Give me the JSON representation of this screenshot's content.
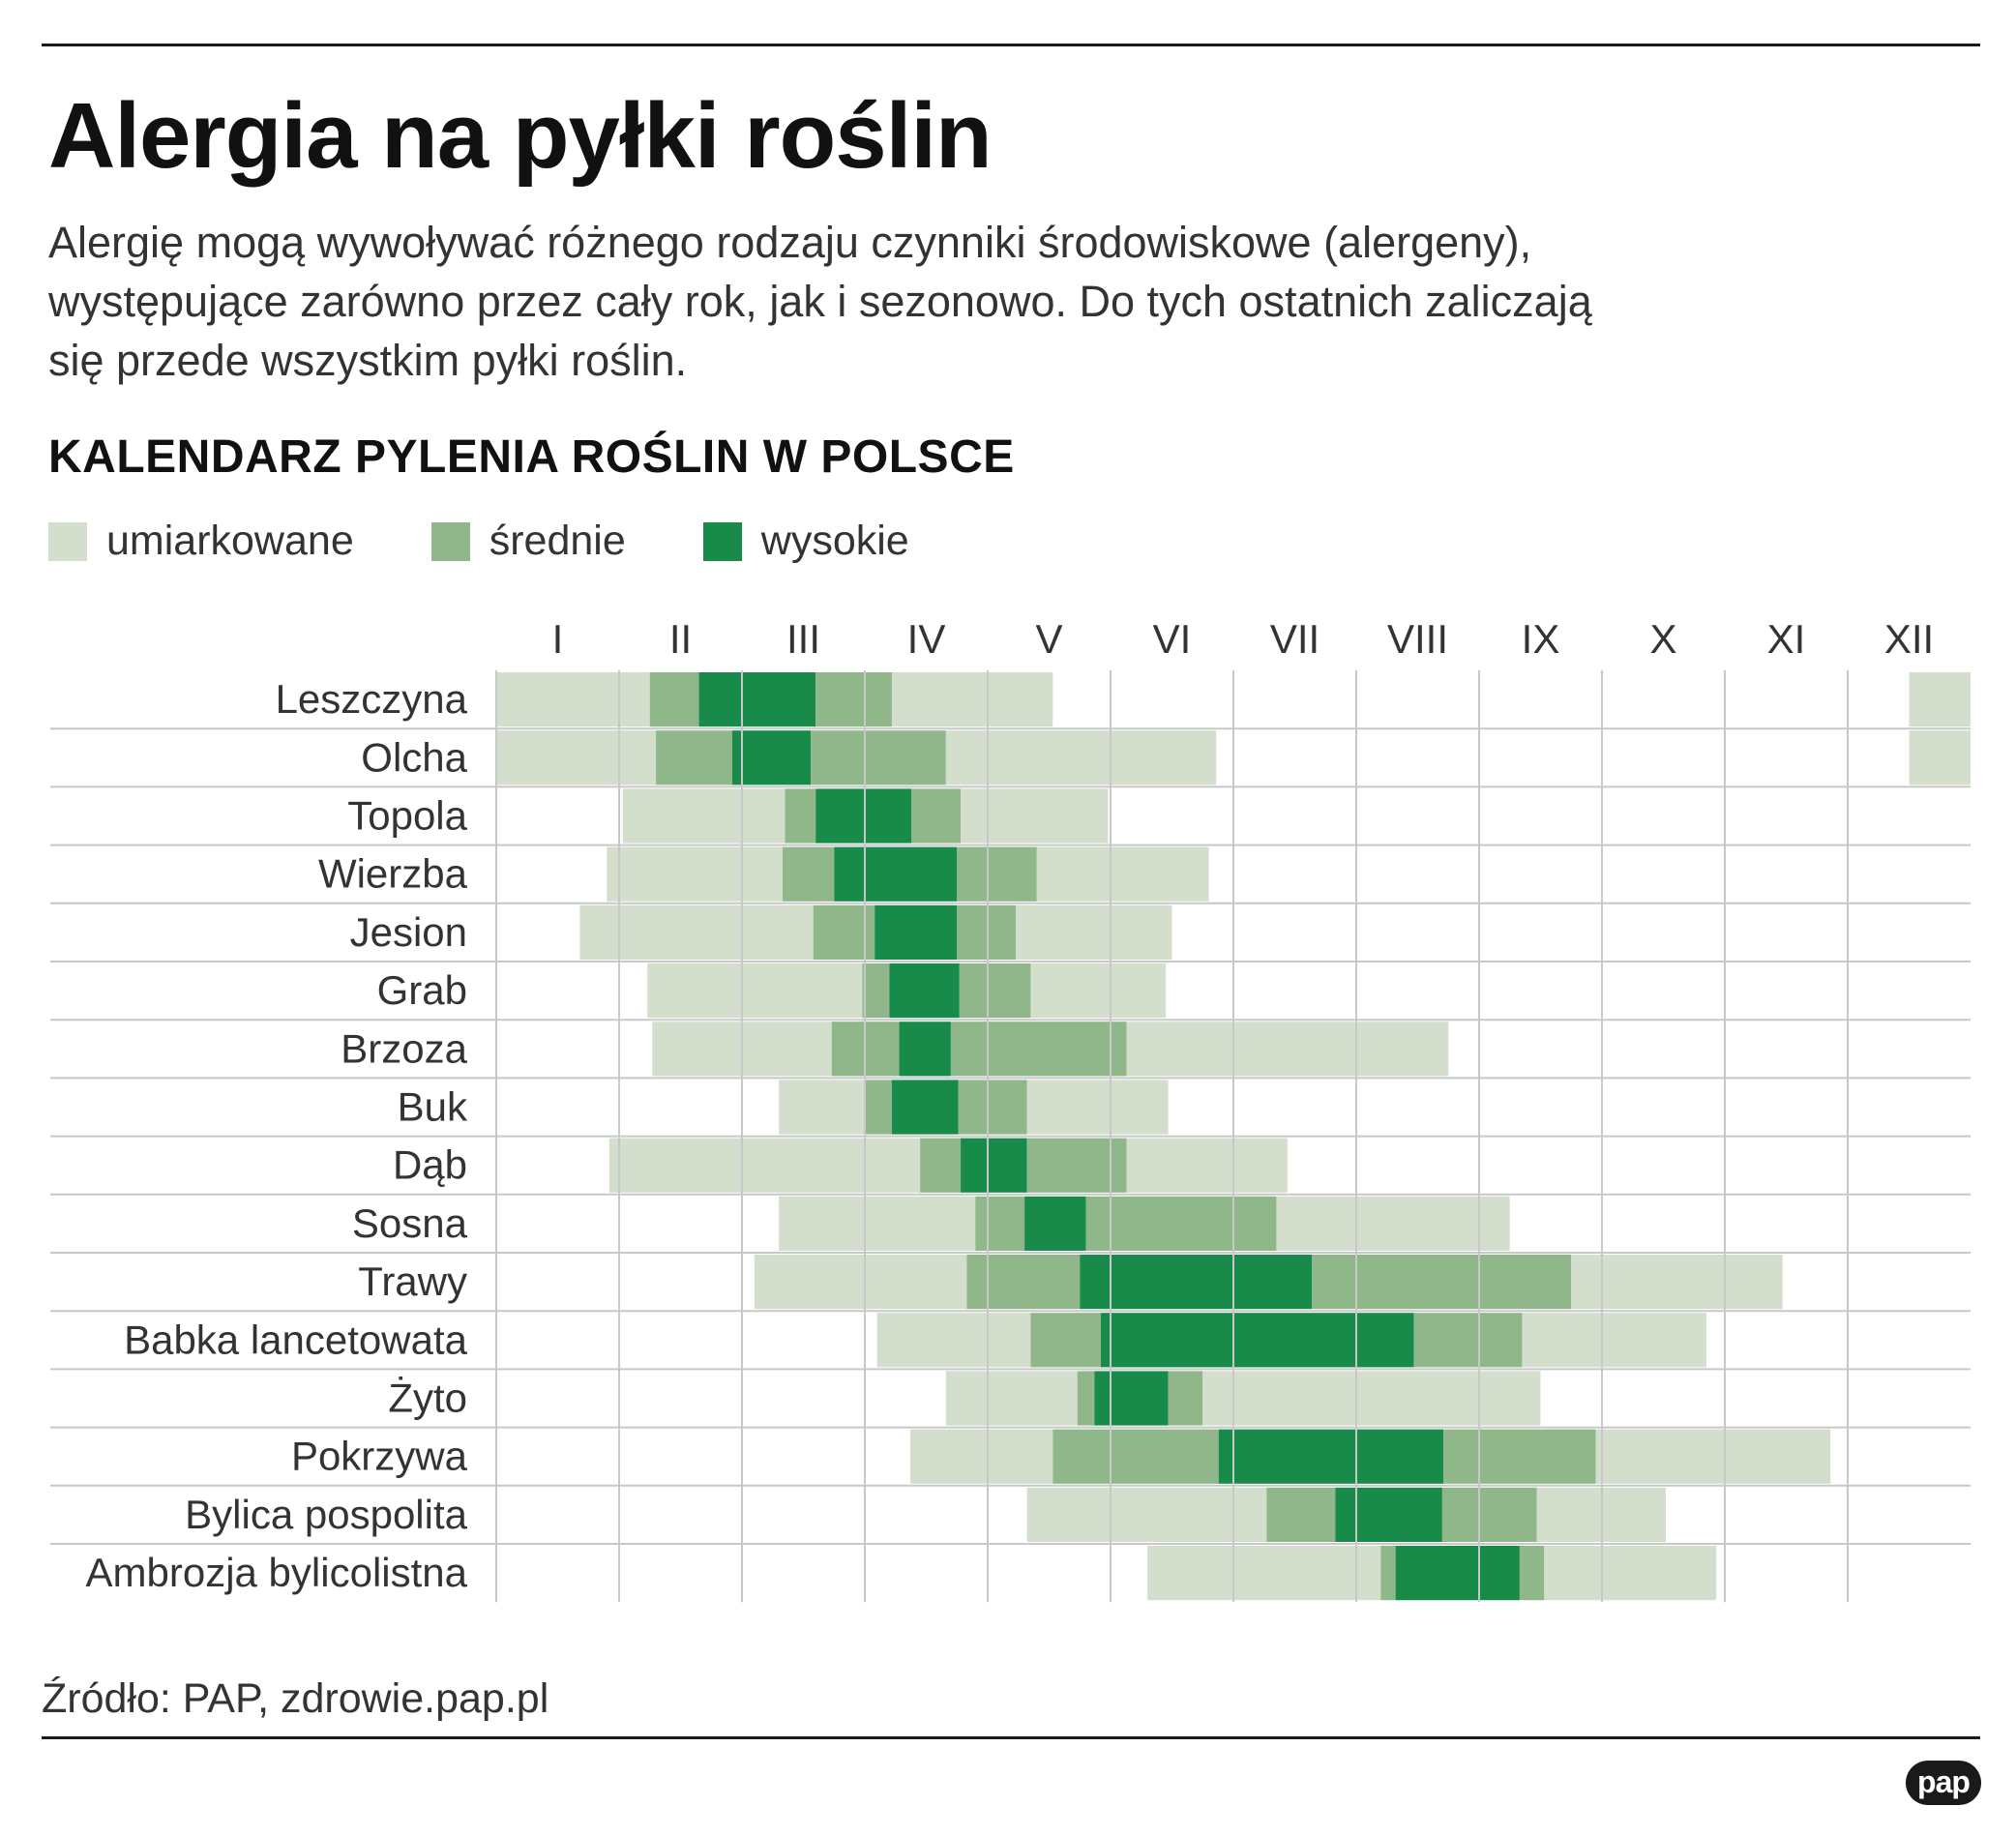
{
  "header": {
    "title": "Alergia na pyłki roślin",
    "lead_lines": [
      "Alergię mogą wywoływać różnego rodzaju czynniki środowiskowe (alergeny),",
      "występujące zarówno przez cały rok, jak i sezonowo. Do tych ostatnich zaliczają",
      "się przede wszystkim pyłki roślin."
    ],
    "subtitle": "KALENDARZ PYLENIA ROŚLIN W POLSCE"
  },
  "legend": {
    "moderate": "umiarkowane",
    "medium": "średnie",
    "high": "wysokie"
  },
  "colors": {
    "moderate": "#d3dfcc",
    "medium": "#8fb78a",
    "high": "#188a4a",
    "grid": "#c8c8c8",
    "rule": "#1a1a1a",
    "text": "#333333"
  },
  "chart_data": {
    "type": "gantt",
    "title": "KALENDARZ PYLENIA ROŚLIN W POLSCE",
    "x_unit": "months (0 = start of January, 12 = end of December)",
    "xlim": [
      0,
      12
    ],
    "months": [
      "I",
      "II",
      "III",
      "IV",
      "V",
      "VI",
      "VII",
      "VIII",
      "IX",
      "X",
      "XI",
      "XII"
    ],
    "levels": [
      "moderate",
      "medium",
      "high"
    ],
    "plants": [
      {
        "name": "Leszczyna",
        "segments": [
          [
            0,
            1.25,
            "moderate"
          ],
          [
            1.25,
            1.65,
            "medium"
          ],
          [
            1.65,
            2.6,
            "high"
          ],
          [
            2.6,
            3.22,
            "medium"
          ],
          [
            3.22,
            4.53,
            "moderate"
          ],
          [
            11.5,
            12,
            "moderate"
          ]
        ]
      },
      {
        "name": "Olcha",
        "segments": [
          [
            0,
            1.3,
            "moderate"
          ],
          [
            1.3,
            1.92,
            "medium"
          ],
          [
            1.92,
            2.56,
            "high"
          ],
          [
            2.56,
            3.66,
            "medium"
          ],
          [
            3.66,
            5.86,
            "moderate"
          ],
          [
            11.5,
            12,
            "moderate"
          ]
        ]
      },
      {
        "name": "Topola",
        "segments": [
          [
            1.03,
            2.35,
            "moderate"
          ],
          [
            2.35,
            2.6,
            "medium"
          ],
          [
            2.6,
            3.38,
            "high"
          ],
          [
            3.38,
            3.78,
            "medium"
          ],
          [
            3.78,
            4.98,
            "moderate"
          ]
        ]
      },
      {
        "name": "Wierzba",
        "segments": [
          [
            0.9,
            2.33,
            "moderate"
          ],
          [
            2.33,
            2.75,
            "medium"
          ],
          [
            2.75,
            3.75,
            "high"
          ],
          [
            3.75,
            4.4,
            "medium"
          ],
          [
            4.4,
            5.8,
            "moderate"
          ]
        ]
      },
      {
        "name": "Jesion",
        "segments": [
          [
            0.68,
            2.58,
            "moderate"
          ],
          [
            2.58,
            3.08,
            "medium"
          ],
          [
            3.08,
            3.75,
            "high"
          ],
          [
            3.75,
            4.23,
            "medium"
          ],
          [
            4.23,
            5.5,
            "moderate"
          ]
        ]
      },
      {
        "name": "Grab",
        "segments": [
          [
            1.23,
            2.98,
            "moderate"
          ],
          [
            2.98,
            3.2,
            "medium"
          ],
          [
            3.2,
            3.77,
            "high"
          ],
          [
            3.77,
            4.35,
            "medium"
          ],
          [
            4.35,
            5.45,
            "moderate"
          ]
        ]
      },
      {
        "name": "Brzoza",
        "segments": [
          [
            1.27,
            2.73,
            "moderate"
          ],
          [
            2.73,
            3.28,
            "medium"
          ],
          [
            3.28,
            3.7,
            "high"
          ],
          [
            3.7,
            5.13,
            "medium"
          ],
          [
            5.13,
            7.75,
            "moderate"
          ]
        ]
      },
      {
        "name": "Buk",
        "segments": [
          [
            2.3,
            3.0,
            "moderate"
          ],
          [
            3.0,
            3.22,
            "medium"
          ],
          [
            3.22,
            3.76,
            "high"
          ],
          [
            3.76,
            4.32,
            "medium"
          ],
          [
            4.32,
            5.47,
            "moderate"
          ]
        ]
      },
      {
        "name": "Dąb",
        "segments": [
          [
            0.92,
            3.45,
            "moderate"
          ],
          [
            3.45,
            3.78,
            "medium"
          ],
          [
            3.78,
            4.32,
            "high"
          ],
          [
            4.32,
            5.13,
            "medium"
          ],
          [
            5.13,
            6.44,
            "moderate"
          ]
        ]
      },
      {
        "name": "Sosna",
        "segments": [
          [
            2.3,
            3.9,
            "moderate"
          ],
          [
            3.9,
            4.3,
            "medium"
          ],
          [
            4.3,
            4.8,
            "high"
          ],
          [
            4.8,
            6.35,
            "medium"
          ],
          [
            6.35,
            8.25,
            "moderate"
          ]
        ]
      },
      {
        "name": "Trawy",
        "segments": [
          [
            2.1,
            3.83,
            "moderate"
          ],
          [
            3.83,
            4.75,
            "medium"
          ],
          [
            4.75,
            6.64,
            "high"
          ],
          [
            6.64,
            8.75,
            "medium"
          ],
          [
            8.75,
            10.47,
            "moderate"
          ]
        ]
      },
      {
        "name": "Babka lancetowata",
        "segments": [
          [
            3.1,
            4.35,
            "moderate"
          ],
          [
            4.35,
            4.92,
            "medium"
          ],
          [
            4.92,
            7.47,
            "high"
          ],
          [
            7.47,
            8.35,
            "medium"
          ],
          [
            8.35,
            9.85,
            "moderate"
          ]
        ]
      },
      {
        "name": "Żyto",
        "segments": [
          [
            3.66,
            4.73,
            "moderate"
          ],
          [
            4.73,
            4.87,
            "medium"
          ],
          [
            4.87,
            5.47,
            "high"
          ],
          [
            5.47,
            5.75,
            "medium"
          ],
          [
            5.75,
            8.5,
            "moderate"
          ]
        ]
      },
      {
        "name": "Pokrzywa",
        "segments": [
          [
            3.37,
            4.53,
            "moderate"
          ],
          [
            4.53,
            5.88,
            "medium"
          ],
          [
            5.88,
            7.71,
            "high"
          ],
          [
            7.71,
            8.95,
            "medium"
          ],
          [
            8.95,
            10.86,
            "moderate"
          ]
        ]
      },
      {
        "name": "Bylica pospolita",
        "segments": [
          [
            4.32,
            6.27,
            "moderate"
          ],
          [
            6.27,
            6.83,
            "medium"
          ],
          [
            6.83,
            7.7,
            "high"
          ],
          [
            7.7,
            8.47,
            "medium"
          ],
          [
            8.47,
            9.52,
            "moderate"
          ]
        ]
      },
      {
        "name": "Ambrozja bylicolistna",
        "segments": [
          [
            5.3,
            7.2,
            "moderate"
          ],
          [
            7.2,
            7.32,
            "medium"
          ],
          [
            7.32,
            8.33,
            "high"
          ],
          [
            8.33,
            8.53,
            "medium"
          ],
          [
            8.53,
            9.93,
            "moderate"
          ]
        ]
      }
    ]
  },
  "footer": {
    "source": "Źródło: PAP, zdrowie.pap.pl",
    "logo": "pap"
  }
}
